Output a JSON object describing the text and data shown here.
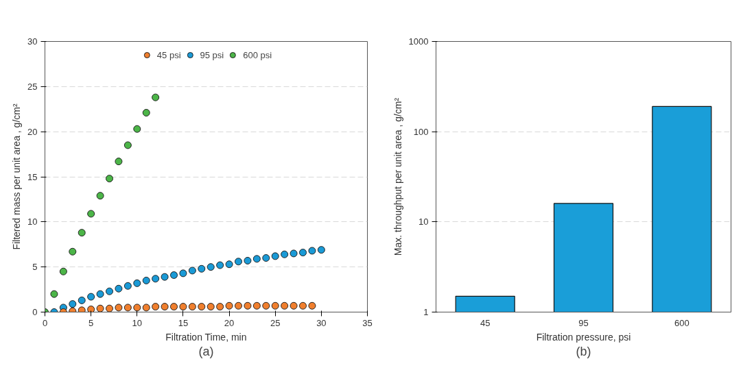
{
  "chart_data": [
    {
      "type": "scatter",
      "xlabel": "Filtration Time, min",
      "ylabel": "Filtered mass per unit area , g/cm²",
      "annotations": [
        "(a)"
      ],
      "xlim": [
        0,
        35
      ],
      "xticks": [
        0,
        5,
        10,
        15,
        20,
        25,
        30,
        35
      ],
      "ylim": [
        0,
        30
      ],
      "yticks": [
        0,
        5,
        10,
        15,
        20,
        25,
        30
      ],
      "grid": "y",
      "legend": "top",
      "marker": "circle",
      "series": [
        {
          "name": "45 psi",
          "color": "#f07f2e",
          "x": [
            2,
            3,
            4,
            5,
            6,
            7,
            8,
            9,
            10,
            11,
            12,
            13,
            14,
            15,
            16,
            17,
            18,
            19,
            20,
            21,
            22,
            23,
            24,
            25,
            26,
            27,
            28,
            29
          ],
          "values": [
            0,
            0.1,
            0.2,
            0.3,
            0.4,
            0.4,
            0.5,
            0.5,
            0.5,
            0.5,
            0.6,
            0.6,
            0.6,
            0.6,
            0.6,
            0.6,
            0.6,
            0.6,
            0.7,
            0.7,
            0.7,
            0.7,
            0.7,
            0.7,
            0.7,
            0.7,
            0.7,
            0.7
          ]
        },
        {
          "name": "95 psi",
          "color": "#1a9ad6",
          "x": [
            1,
            2,
            3,
            4,
            5,
            6,
            7,
            8,
            9,
            10,
            11,
            12,
            13,
            14,
            15,
            16,
            17,
            18,
            19,
            20,
            21,
            22,
            23,
            24,
            25,
            26,
            27,
            28,
            29,
            30
          ],
          "values": [
            0,
            0.5,
            0.9,
            1.3,
            1.7,
            2.0,
            2.3,
            2.6,
            2.9,
            3.2,
            3.5,
            3.7,
            3.9,
            4.1,
            4.3,
            4.6,
            4.8,
            5.0,
            5.2,
            5.3,
            5.6,
            5.7,
            5.9,
            6.0,
            6.2,
            6.4,
            6.5,
            6.6,
            6.8,
            6.9
          ]
        },
        {
          "name": "600 psi",
          "color": "#4cb548",
          "x": [
            0,
            1,
            2,
            3,
            4,
            5,
            6,
            7,
            8,
            9,
            10,
            11,
            12
          ],
          "values": [
            0,
            2.0,
            4.5,
            6.7,
            8.8,
            10.9,
            12.9,
            14.8,
            16.7,
            18.5,
            20.3,
            22.1,
            23.8
          ]
        }
      ]
    },
    {
      "type": "bar",
      "xlabel": "Filtration pressure, psi",
      "ylabel": "Max. throughput per unit area , g/cm²",
      "annotations": [
        "(b)"
      ],
      "categories": [
        "45",
        "95",
        "600"
      ],
      "values": [
        1.5,
        16,
        190
      ],
      "color": "#1a9ed8",
      "log": true,
      "ylim": [
        1,
        1000
      ],
      "yticks": [
        1,
        10,
        100,
        1000
      ],
      "grid": "y"
    }
  ]
}
